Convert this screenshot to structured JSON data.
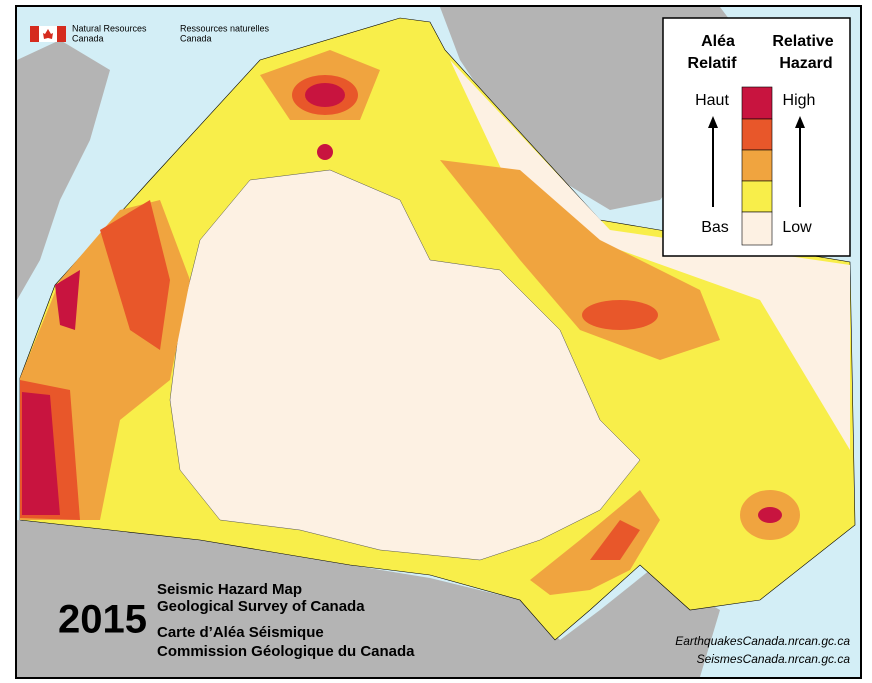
{
  "header": {
    "department_en": [
      "Natural Resources",
      "Canada"
    ],
    "department_fr": [
      "Ressources naturelles",
      "Canada"
    ]
  },
  "legend": {
    "title_fr": [
      "Aléa",
      "Relatif"
    ],
    "title_en": [
      "Relative",
      "Hazard"
    ],
    "high_fr": "Haut",
    "high_en": "High",
    "low_fr": "Bas",
    "low_en": "Low"
  },
  "footer": {
    "year": "2015",
    "lines": [
      "Seismic Hazard Map",
      "Geological Survey of Canada",
      "Carte d’Aléa Séismique",
      "Commission Géologique du Canada"
    ],
    "urls": [
      "EarthquakesCanada.nrcan.gc.ca",
      "SeismesCanada.nrcan.gc.ca"
    ]
  }
}
